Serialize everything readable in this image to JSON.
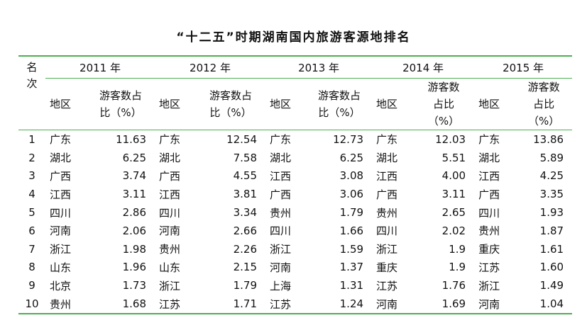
{
  "title": "“十二五”时期湖南国内旅游客源地排名",
  "header": {
    "rank_label_line1": "名",
    "rank_label_line2": "次",
    "years": [
      "2011 年",
      "2012 年",
      "2013 年",
      "2014 年",
      "2015 年"
    ],
    "region_label": "地区",
    "share_labels": [
      [
        "游客数占",
        "比（%）"
      ],
      [
        "游客数占",
        "比（%）"
      ],
      [
        "游客数占",
        "比（%）"
      ],
      [
        "游客数",
        "占比",
        "（%）"
      ],
      [
        "游客数",
        "占比",
        "（%）"
      ]
    ]
  },
  "rows": [
    {
      "rank": "1",
      "cells": [
        [
          "广东",
          "11.63"
        ],
        [
          "广东",
          "12.54"
        ],
        [
          "广东",
          "12.73"
        ],
        [
          "广东",
          "12.03"
        ],
        [
          "广东",
          "13.86"
        ]
      ]
    },
    {
      "rank": "2",
      "cells": [
        [
          "湖北",
          "6.25"
        ],
        [
          "湖北",
          "7.58"
        ],
        [
          "湖北",
          "6.25"
        ],
        [
          "湖北",
          "5.51"
        ],
        [
          "湖北",
          "5.89"
        ]
      ]
    },
    {
      "rank": "3",
      "cells": [
        [
          "广西",
          "3.74"
        ],
        [
          "广西",
          "4.55"
        ],
        [
          "江西",
          "3.08"
        ],
        [
          "江西",
          "4.00"
        ],
        [
          "江西",
          "4.25"
        ]
      ]
    },
    {
      "rank": "4",
      "cells": [
        [
          "江西",
          "3.11"
        ],
        [
          "江西",
          "3.81"
        ],
        [
          "广西",
          "3.06"
        ],
        [
          "广西",
          "3.11"
        ],
        [
          "广西",
          "3.35"
        ]
      ]
    },
    {
      "rank": "5",
      "cells": [
        [
          "四川",
          "2.86"
        ],
        [
          "四川",
          "3.34"
        ],
        [
          "贵州",
          "1.79"
        ],
        [
          "贵州",
          "2.65"
        ],
        [
          "四川",
          "1.93"
        ]
      ]
    },
    {
      "rank": "6",
      "cells": [
        [
          "河南",
          "2.06"
        ],
        [
          "河南",
          "2.66"
        ],
        [
          "四川",
          "1.66"
        ],
        [
          "四川",
          "2.02"
        ],
        [
          "贵州",
          "1.87"
        ]
      ]
    },
    {
      "rank": "7",
      "cells": [
        [
          "浙江",
          "1.98"
        ],
        [
          "贵州",
          "2.26"
        ],
        [
          "浙江",
          "1.59"
        ],
        [
          "浙江",
          "1.9"
        ],
        [
          "重庆",
          "1.61"
        ]
      ]
    },
    {
      "rank": "8",
      "cells": [
        [
          "山东",
          "1.96"
        ],
        [
          "山东",
          "2.15"
        ],
        [
          "河南",
          "1.37"
        ],
        [
          "重庆",
          "1.9"
        ],
        [
          "江苏",
          "1.60"
        ]
      ]
    },
    {
      "rank": "9",
      "cells": [
        [
          "北京",
          "1.73"
        ],
        [
          "浙江",
          "1.79"
        ],
        [
          "上海",
          "1.31"
        ],
        [
          "江苏",
          "1.76"
        ],
        [
          "浙江",
          "1.49"
        ]
      ]
    },
    {
      "rank": "10",
      "cells": [
        [
          "贵州",
          "1.68"
        ],
        [
          "江苏",
          "1.71"
        ],
        [
          "江苏",
          "1.24"
        ],
        [
          "河南",
          "1.69"
        ],
        [
          "河南",
          "1.04"
        ]
      ]
    }
  ],
  "colors": {
    "rule": "#4caf50",
    "text": "#111111"
  }
}
